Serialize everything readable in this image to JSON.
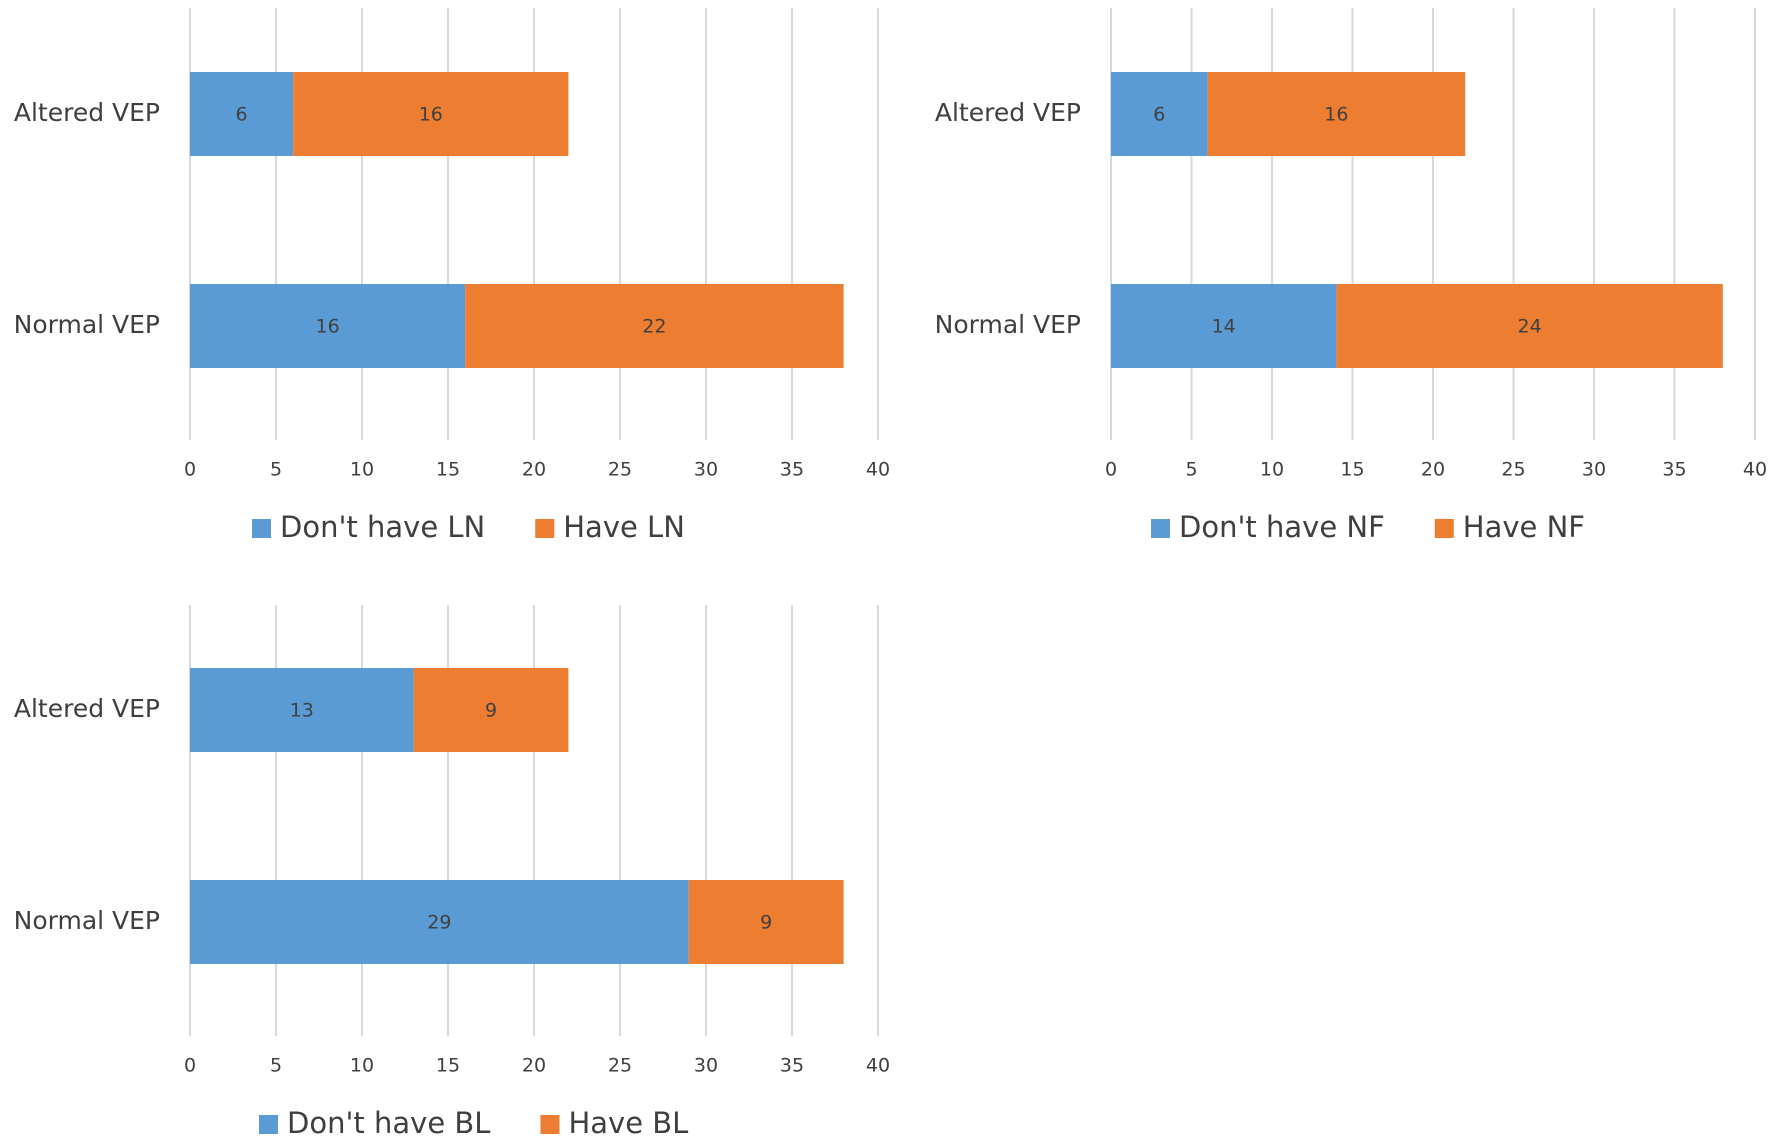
{
  "colors": {
    "series_a": "#5b9bd5",
    "series_b": "#ed7d31",
    "grid": "#d9d9d9",
    "text": "#404040"
  },
  "chart_data": [
    {
      "type": "bar",
      "orientation": "horizontal",
      "stacked": true,
      "categories": [
        "Altered VEP",
        "Normal VEP"
      ],
      "series": [
        {
          "name": "Don't have LN",
          "values": [
            6,
            16
          ]
        },
        {
          "name": "Have LN",
          "values": [
            16,
            22
          ]
        }
      ],
      "xlim": [
        0,
        40
      ],
      "xticks": [
        "0",
        "5",
        "10",
        "15",
        "20",
        "25",
        "30",
        "35",
        "40"
      ],
      "legend": "bottom",
      "grid": true
    },
    {
      "type": "bar",
      "orientation": "horizontal",
      "stacked": true,
      "categories": [
        "Altered VEP",
        "Normal VEP"
      ],
      "series": [
        {
          "name": "Don't have NF",
          "values": [
            6,
            14
          ]
        },
        {
          "name": "Have NF",
          "values": [
            16,
            24
          ]
        }
      ],
      "xlim": [
        0,
        40
      ],
      "xticks": [
        "0",
        "5",
        "10",
        "15",
        "20",
        "25",
        "30",
        "35",
        "40"
      ],
      "legend": "bottom",
      "grid": true
    },
    {
      "type": "bar",
      "orientation": "horizontal",
      "stacked": true,
      "categories": [
        "Altered VEP",
        "Normal VEP"
      ],
      "series": [
        {
          "name": "Don't have BL",
          "values": [
            13,
            29
          ]
        },
        {
          "name": "Have BL",
          "values": [
            9,
            9
          ]
        }
      ],
      "xlim": [
        0,
        40
      ],
      "xticks": [
        "0",
        "5",
        "10",
        "15",
        "20",
        "25",
        "30",
        "35",
        "40"
      ],
      "legend": "bottom",
      "grid": true
    }
  ]
}
